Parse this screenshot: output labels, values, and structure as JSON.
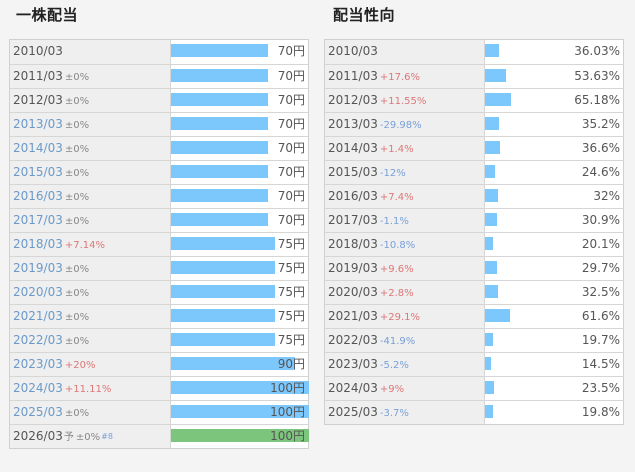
{
  "dividend": {
    "title": "一株配当",
    "unit": "円",
    "max": 100,
    "rows": [
      {
        "year": "2010/03",
        "change": "",
        "dir": "",
        "value": 70,
        "link": false,
        "forecast": false
      },
      {
        "year": "2011/03",
        "change": "±0%",
        "dir": "flat",
        "value": 70,
        "link": false,
        "forecast": false
      },
      {
        "year": "2012/03",
        "change": "±0%",
        "dir": "flat",
        "value": 70,
        "link": false,
        "forecast": false
      },
      {
        "year": "2013/03",
        "change": "±0%",
        "dir": "flat",
        "value": 70,
        "link": true,
        "forecast": false
      },
      {
        "year": "2014/03",
        "change": "±0%",
        "dir": "flat",
        "value": 70,
        "link": true,
        "forecast": false
      },
      {
        "year": "2015/03",
        "change": "±0%",
        "dir": "flat",
        "value": 70,
        "link": true,
        "forecast": false
      },
      {
        "year": "2016/03",
        "change": "±0%",
        "dir": "flat",
        "value": 70,
        "link": true,
        "forecast": false
      },
      {
        "year": "2017/03",
        "change": "±0%",
        "dir": "flat",
        "value": 70,
        "link": true,
        "forecast": false
      },
      {
        "year": "2018/03",
        "change": "+7.14%",
        "dir": "up",
        "value": 75,
        "link": true,
        "forecast": false
      },
      {
        "year": "2019/03",
        "change": "±0%",
        "dir": "flat",
        "value": 75,
        "link": true,
        "forecast": false
      },
      {
        "year": "2020/03",
        "change": "±0%",
        "dir": "flat",
        "value": 75,
        "link": true,
        "forecast": false
      },
      {
        "year": "2021/03",
        "change": "±0%",
        "dir": "flat",
        "value": 75,
        "link": true,
        "forecast": false
      },
      {
        "year": "2022/03",
        "change": "±0%",
        "dir": "flat",
        "value": 75,
        "link": true,
        "forecast": false
      },
      {
        "year": "2023/03",
        "change": "+20%",
        "dir": "up",
        "value": 90,
        "link": true,
        "forecast": false
      },
      {
        "year": "2024/03",
        "change": "+11.11%",
        "dir": "up",
        "value": 100,
        "link": true,
        "forecast": false
      },
      {
        "year": "2025/03",
        "change": "±0%",
        "dir": "flat",
        "value": 100,
        "link": true,
        "forecast": false
      },
      {
        "year": "2026/03",
        "yoso": "予",
        "change": "±0%",
        "note": "#8",
        "dir": "flat",
        "value": 100,
        "link": false,
        "forecast": true
      }
    ]
  },
  "payout": {
    "title": "配当性向",
    "max": 100,
    "rows": [
      {
        "year": "2010/03",
        "change": "",
        "dir": "",
        "value": 36.03,
        "label": "36.03%"
      },
      {
        "year": "2011/03",
        "change": "+17.6%",
        "dir": "up",
        "value": 53.63,
        "label": "53.63%"
      },
      {
        "year": "2012/03",
        "change": "+11.55%",
        "dir": "up",
        "value": 65.18,
        "label": "65.18%"
      },
      {
        "year": "2013/03",
        "change": "-29.98%",
        "dir": "down",
        "value": 35.2,
        "label": "35.2%"
      },
      {
        "year": "2014/03",
        "change": "+1.4%",
        "dir": "up",
        "value": 36.6,
        "label": "36.6%"
      },
      {
        "year": "2015/03",
        "change": "-12%",
        "dir": "down",
        "value": 24.6,
        "label": "24.6%"
      },
      {
        "year": "2016/03",
        "change": "+7.4%",
        "dir": "up",
        "value": 32,
        "label": "32%"
      },
      {
        "year": "2017/03",
        "change": "-1.1%",
        "dir": "down",
        "value": 30.9,
        "label": "30.9%"
      },
      {
        "year": "2018/03",
        "change": "-10.8%",
        "dir": "down",
        "value": 20.1,
        "label": "20.1%"
      },
      {
        "year": "2019/03",
        "change": "+9.6%",
        "dir": "up",
        "value": 29.7,
        "label": "29.7%"
      },
      {
        "year": "2020/03",
        "change": "+2.8%",
        "dir": "up",
        "value": 32.5,
        "label": "32.5%"
      },
      {
        "year": "2021/03",
        "change": "+29.1%",
        "dir": "up",
        "value": 61.6,
        "label": "61.6%"
      },
      {
        "year": "2022/03",
        "change": "-41.9%",
        "dir": "down",
        "value": 19.7,
        "label": "19.7%"
      },
      {
        "year": "2023/03",
        "change": "-5.2%",
        "dir": "down",
        "value": 14.5,
        "label": "14.5%"
      },
      {
        "year": "2024/03",
        "change": "+9%",
        "dir": "up",
        "value": 23.5,
        "label": "23.5%"
      },
      {
        "year": "2025/03",
        "change": "-3.7%",
        "dir": "down",
        "value": 19.8,
        "label": "19.8%"
      }
    ]
  }
}
